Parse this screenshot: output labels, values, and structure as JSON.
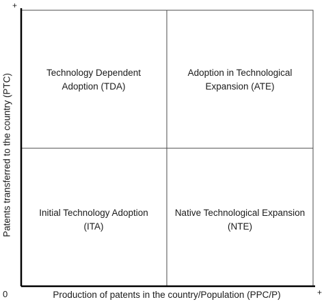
{
  "axes": {
    "y_label": "Patents transferred to the country (PTC)",
    "x_label": "Production of patents in the country/Population (PPC/P)",
    "origin": "0",
    "y_plus": "+",
    "x_plus": "+"
  },
  "quadrants": {
    "top_left": {
      "line1": "Technology Dependent",
      "line2": "Adoption (TDA)"
    },
    "top_right": {
      "line1": "Adoption in Technological",
      "line2": "Expansion (ATE)"
    },
    "bottom_left": {
      "line1": "Initial Technology Adoption",
      "line2": "(ITA)"
    },
    "bottom_right": {
      "line1": "Native Technological Expansion",
      "line2": "(NTE)"
    }
  }
}
